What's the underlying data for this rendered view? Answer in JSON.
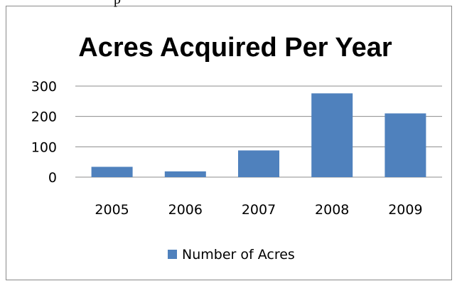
{
  "chart_data": {
    "type": "bar",
    "title": "Acres Acquired Per Year",
    "categories": [
      "2005",
      "2006",
      "2007",
      "2008",
      "2009"
    ],
    "series": [
      {
        "name": "Number of Acres",
        "values": [
          34,
          19,
          88,
          276,
          210
        ]
      }
    ],
    "ylim": [
      0,
      300
    ],
    "yticks": [
      0,
      100,
      200,
      300
    ],
    "grid": true,
    "legend_position": "bottom",
    "bar_color": "#4f81bd"
  },
  "page_fragment_text": "p"
}
